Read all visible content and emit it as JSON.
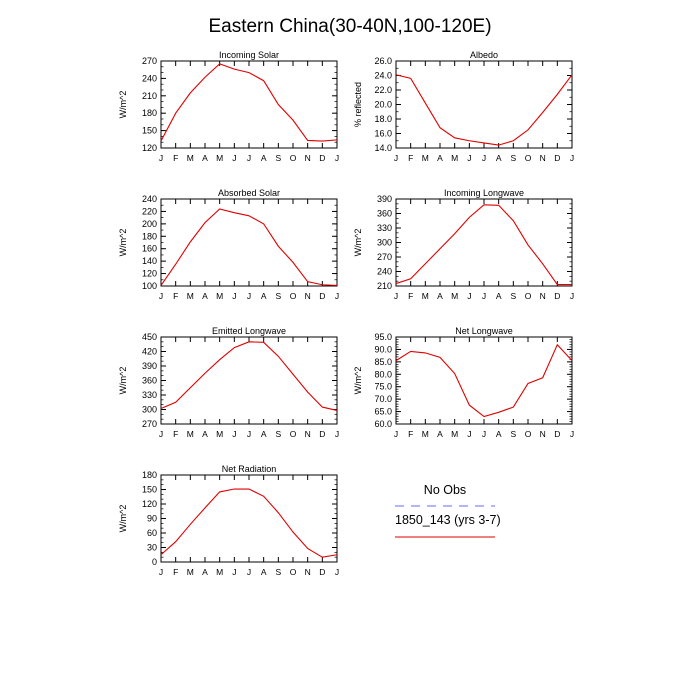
{
  "title": "Eastern China(30-40N,100-120E)",
  "months": [
    "J",
    "F",
    "M",
    "A",
    "M",
    "J",
    "J",
    "A",
    "S",
    "O",
    "N",
    "D",
    "J"
  ],
  "legend": {
    "obs_label": "No Obs",
    "model_label": "1850_143 (yrs 3-7)",
    "obs_color": "#6a6aff",
    "model_color": "#e00000"
  },
  "chart_data": [
    {
      "type": "line",
      "title": "Incoming Solar",
      "ylabel": "W/m^2",
      "ylim": [
        120,
        270
      ],
      "yticks": [
        120,
        150,
        180,
        210,
        240,
        270
      ],
      "ytick_labels": [
        "120",
        "150",
        "180",
        "210",
        "240",
        "270"
      ],
      "yminor": 10,
      "series": [
        {
          "name": "1850_143 (yrs 3-7)",
          "values": [
            132,
            180,
            215,
            242,
            265,
            256,
            250,
            236,
            195,
            168,
            133,
            132,
            134
          ]
        }
      ]
    },
    {
      "type": "line",
      "title": "Albedo",
      "ylabel": "% reflected",
      "ylim": [
        14.0,
        26.0
      ],
      "yticks": [
        14,
        16,
        18,
        20,
        22,
        24,
        26
      ],
      "ytick_labels": [
        "14.0",
        "16.0",
        "18.0",
        "20.0",
        "22.0",
        "24.0",
        "26.0"
      ],
      "yminor": 1,
      "series": [
        {
          "name": "1850_143 (yrs 3-7)",
          "values": [
            24.1,
            23.6,
            20.2,
            16.8,
            15.4,
            15.0,
            14.7,
            14.4,
            15.0,
            16.5,
            18.9,
            21.4,
            24.1
          ]
        }
      ]
    },
    {
      "type": "line",
      "title": "Absorbed Solar",
      "ylabel": "W/m^2",
      "ylim": [
        100,
        240
      ],
      "yticks": [
        100,
        120,
        140,
        160,
        180,
        200,
        220,
        240
      ],
      "ytick_labels": [
        "100",
        "120",
        "140",
        "160",
        "180",
        "200",
        "220",
        "240"
      ],
      "yminor": 10,
      "series": [
        {
          "name": "1850_143 (yrs 3-7)",
          "values": [
            101,
            135,
            171,
            202,
            224,
            218,
            213,
            200,
            164,
            138,
            107,
            102,
            101
          ]
        }
      ]
    },
    {
      "type": "line",
      "title": "Incoming Longwave",
      "ylabel": "W/m^2",
      "ylim": [
        210,
        390
      ],
      "yticks": [
        210,
        240,
        270,
        300,
        330,
        360,
        390
      ],
      "ytick_labels": [
        "210",
        "240",
        "270",
        "300",
        "330",
        "360",
        "390"
      ],
      "yminor": 10,
      "series": [
        {
          "name": "1850_143 (yrs 3-7)",
          "values": [
            215,
            225,
            256,
            287,
            318,
            352,
            378,
            377,
            345,
            295,
            256,
            213,
            213
          ]
        }
      ]
    },
    {
      "type": "line",
      "title": "Emitted Longwave",
      "ylabel": "W/m^2",
      "ylim": [
        270,
        450
      ],
      "yticks": [
        270,
        300,
        330,
        360,
        390,
        420,
        450
      ],
      "ytick_labels": [
        "270",
        "300",
        "330",
        "360",
        "390",
        "420",
        "450"
      ],
      "yminor": 10,
      "series": [
        {
          "name": "1850_143 (yrs 3-7)",
          "values": [
            302,
            315,
            345,
            375,
            403,
            428,
            440,
            439,
            410,
            373,
            336,
            305,
            298
          ]
        }
      ]
    },
    {
      "type": "line",
      "title": "Net Longwave",
      "ylabel": "W/m^2",
      "ylim": [
        60.0,
        95.0
      ],
      "yticks": [
        60,
        65,
        70,
        75,
        80,
        85,
        90,
        95
      ],
      "ytick_labels": [
        "60.0",
        "65.0",
        "70.0",
        "75.0",
        "80.0",
        "85.0",
        "90.0",
        "95.0"
      ],
      "yminor": 1,
      "series": [
        {
          "name": "1850_143 (yrs 3-7)",
          "values": [
            85.5,
            89.2,
            88.6,
            86.8,
            80.3,
            67.6,
            63.0,
            64.7,
            66.8,
            76.3,
            78.6,
            91.9,
            85.5
          ]
        }
      ]
    },
    {
      "type": "line",
      "title": "Net Radiation",
      "ylabel": "W/m^2",
      "ylim": [
        0,
        180
      ],
      "yticks": [
        0,
        30,
        60,
        90,
        120,
        150,
        180
      ],
      "ytick_labels": [
        "0",
        "30",
        "60",
        "90",
        "120",
        "150",
        "180"
      ],
      "yminor": 10,
      "series": [
        {
          "name": "1850_143 (yrs 3-7)",
          "values": [
            15,
            42,
            78,
            112,
            145,
            151,
            151,
            136,
            102,
            62,
            28,
            10,
            15
          ]
        }
      ]
    }
  ]
}
